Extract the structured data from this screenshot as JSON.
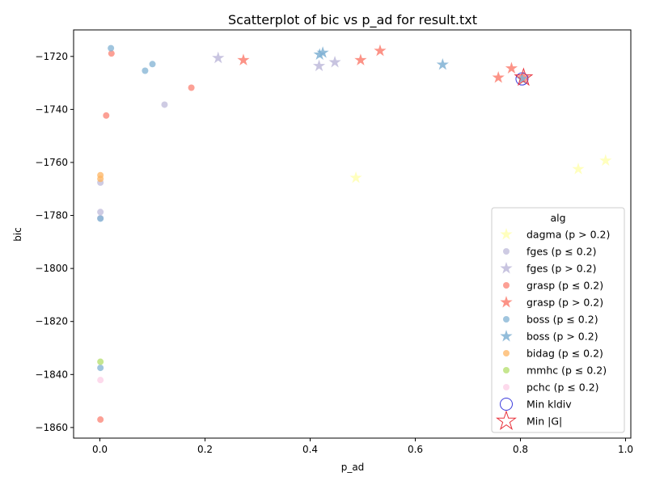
{
  "chart_data": {
    "type": "scatter",
    "title": "Scatterplot of bic vs p_ad for result.txt",
    "xlabel": "p_ad",
    "ylabel": "bic",
    "xlim": [
      -0.05,
      1.01
    ],
    "ylim": [
      -1864,
      -1710
    ],
    "xticks": [
      0.0,
      0.2,
      0.4,
      0.6,
      0.8,
      1.0
    ],
    "xtick_labels": [
      "0.0",
      "0.2",
      "0.4",
      "0.6",
      "0.8",
      "1.0"
    ],
    "yticks": [
      -1720,
      -1740,
      -1760,
      -1780,
      -1800,
      -1820,
      -1840,
      -1860
    ],
    "ytick_labels": [
      "−1720",
      "−1740",
      "−1760",
      "−1780",
      "−1800",
      "−1820",
      "−1840",
      "−1860"
    ],
    "grid": false,
    "legend_title": "alg",
    "legend_position": "lower-right",
    "series": [
      {
        "name": "dagma (p > 0.2)",
        "marker": "star",
        "color": "#ffffb3",
        "points": [
          [
            0.487,
            -1765.8
          ],
          [
            0.91,
            -1762.5
          ],
          [
            0.962,
            -1759.3
          ]
        ]
      },
      {
        "name": "fges (p ≤ 0.2)",
        "marker": "circle",
        "color": "#bebada",
        "points": [
          [
            0.123,
            -1738.2
          ],
          [
            0.001,
            -1767.6
          ],
          [
            0.001,
            -1778.7
          ],
          [
            0.001,
            -1781.0
          ]
        ]
      },
      {
        "name": "fges (p > 0.2)",
        "marker": "star",
        "color": "#bebada",
        "points": [
          [
            0.225,
            -1720.6
          ],
          [
            0.417,
            -1723.6
          ],
          [
            0.447,
            -1722.2
          ]
        ]
      },
      {
        "name": "grasp (p ≤ 0.2)",
        "marker": "circle",
        "color": "#fb8072",
        "points": [
          [
            0.022,
            -1718.9
          ],
          [
            0.174,
            -1731.8
          ],
          [
            0.012,
            -1742.3
          ],
          [
            0.001,
            -1857.0
          ]
        ]
      },
      {
        "name": "grasp (p > 0.2)",
        "marker": "star",
        "color": "#fb8072",
        "points": [
          [
            0.273,
            -1721.4
          ],
          [
            0.496,
            -1721.4
          ],
          [
            0.533,
            -1717.9
          ],
          [
            0.783,
            -1724.5
          ],
          [
            0.758,
            -1728.0
          ],
          [
            0.806,
            -1728.0
          ]
        ]
      },
      {
        "name": "boss (p ≤ 0.2)",
        "marker": "circle",
        "color": "#80b1d3",
        "points": [
          [
            0.021,
            -1716.9
          ],
          [
            0.1,
            -1722.9
          ],
          [
            0.086,
            -1725.4
          ],
          [
            0.001,
            -1781.2
          ],
          [
            0.001,
            -1837.5
          ]
        ]
      },
      {
        "name": "boss (p > 0.2)",
        "marker": "star",
        "color": "#80b1d3",
        "points": [
          [
            0.418,
            -1719.3
          ],
          [
            0.424,
            -1718.6
          ],
          [
            0.652,
            -1723.1
          ],
          [
            0.803,
            -1728.5
          ]
        ]
      },
      {
        "name": "bidag (p ≤ 0.2)",
        "marker": "circle",
        "color": "#fdb462",
        "points": [
          [
            0.001,
            -1764.8
          ],
          [
            0.001,
            -1766.2
          ]
        ]
      },
      {
        "name": "mmhc (p ≤ 0.2)",
        "marker": "circle",
        "color": "#b3de69",
        "points": [
          [
            0.001,
            -1835.2
          ]
        ]
      },
      {
        "name": "pchc (p ≤ 0.2)",
        "marker": "circle",
        "color": "#fccde5",
        "points": [
          [
            0.001,
            -1842.1
          ]
        ]
      }
    ],
    "highlights": [
      {
        "name": "Min kldiv",
        "marker": "open-circle",
        "color": "#3b3bdc",
        "points": [
          [
            0.803,
            -1728.5
          ]
        ]
      },
      {
        "name": "Min |G|",
        "marker": "open-star",
        "color": "#e8323c",
        "points": [
          [
            0.806,
            -1728.0
          ]
        ]
      }
    ]
  }
}
